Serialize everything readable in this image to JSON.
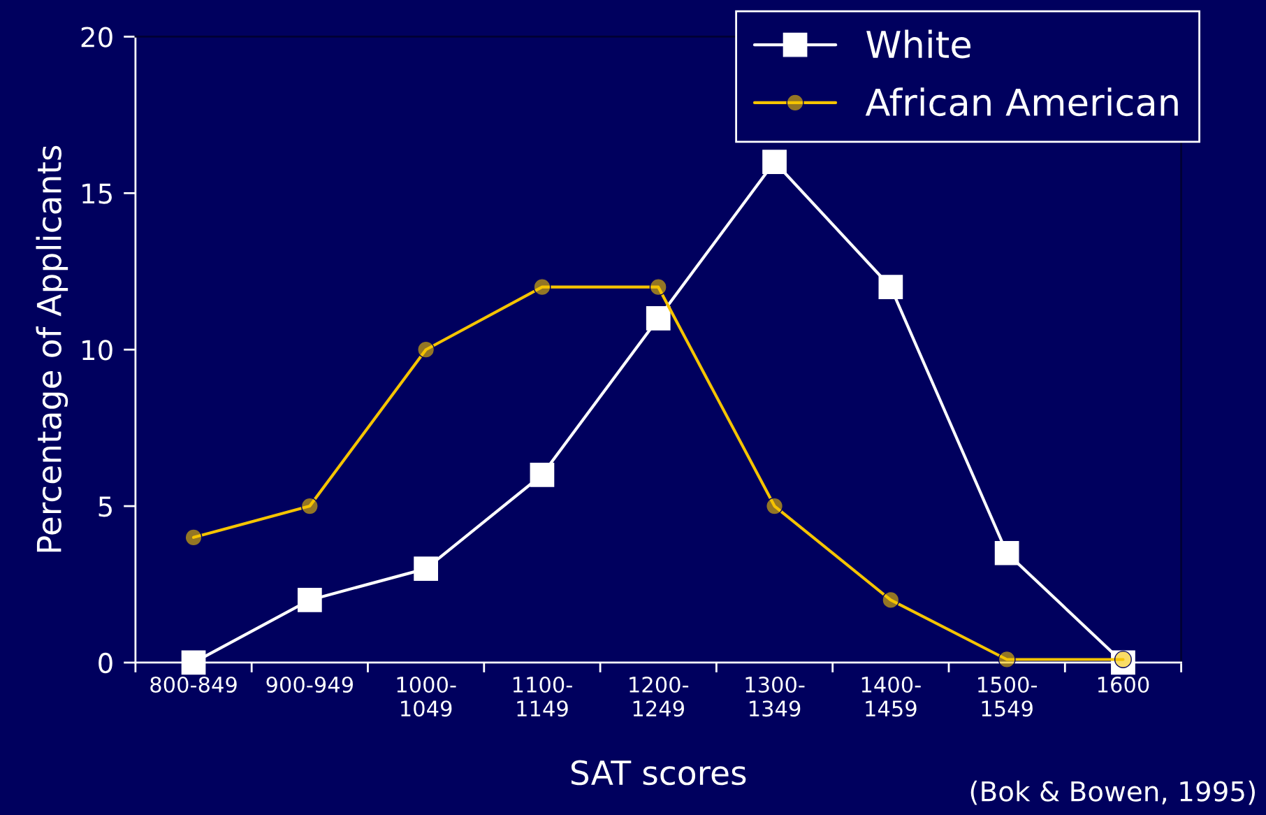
{
  "chart_data": {
    "type": "line",
    "xlabel": "SAT scores",
    "ylabel": "Percentage of Applicants",
    "categories": [
      "800-849",
      "900-949",
      "1000-\n1049",
      "1100-\n1149",
      "1200-\n1249",
      "1300-\n1349",
      "1400-\n1459",
      "1500-\n1549",
      "1600"
    ],
    "series": [
      {
        "name": "White",
        "color": "#ffffff",
        "marker": "square",
        "values": [
          0,
          2,
          3,
          6,
          11,
          16,
          12,
          3.5,
          0
        ]
      },
      {
        "name": "African American",
        "color": "#f5c400",
        "marker": "circle",
        "values": [
          4,
          5,
          10,
          12,
          12,
          5,
          2,
          0.1,
          0.1
        ]
      }
    ],
    "ylim": [
      0,
      20
    ],
    "yticks": [
      0,
      5,
      10,
      15,
      20
    ],
    "grid": false,
    "legend": "top right",
    "line_style": "solid",
    "annotations": [
      "(Bok & Bowen, 1995)"
    ]
  }
}
